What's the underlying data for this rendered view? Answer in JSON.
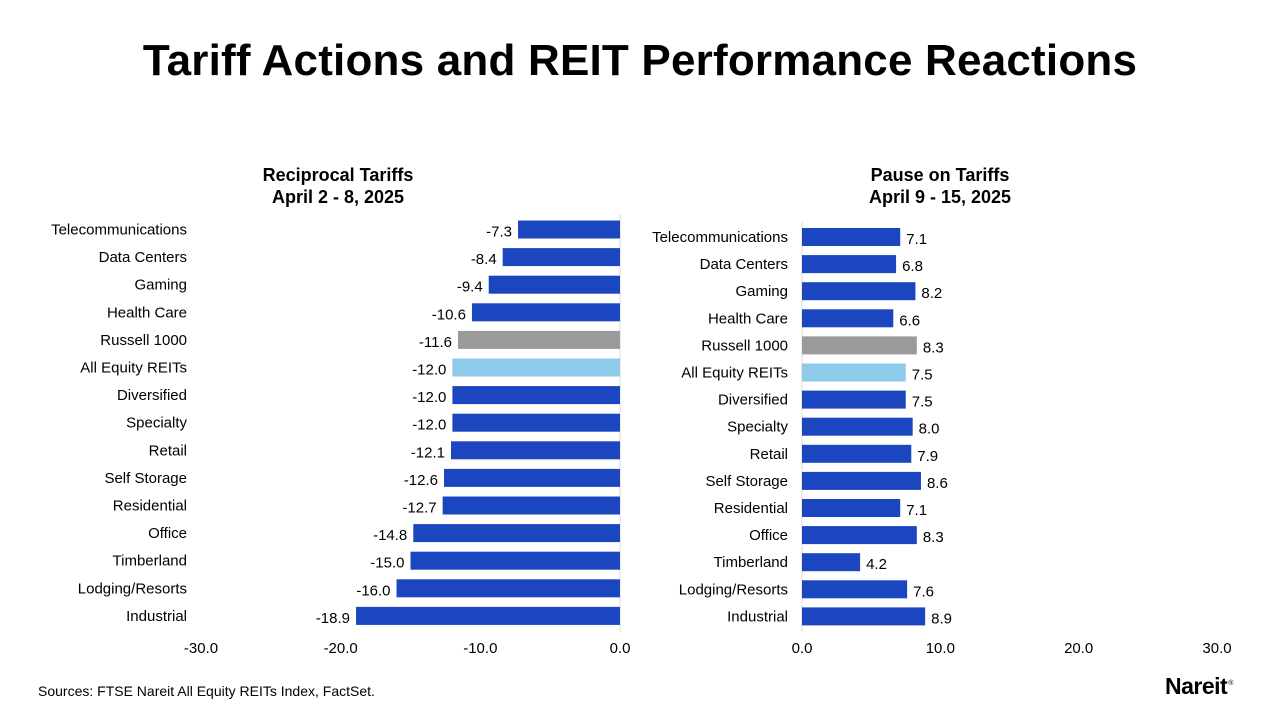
{
  "page": {
    "title": "Tariff Actions and REIT Performance Reactions",
    "source": "Sources: FTSE Nareit All Equity REITs Index, FactSet.",
    "logo": "Nareit",
    "logo_mark": "®"
  },
  "colors": {
    "bar": "#1c45c0",
    "benchmark": "#9a9a9a",
    "all_equity": "#8ecbea"
  },
  "chart_data": [
    {
      "type": "bar",
      "orientation": "horizontal",
      "title": "Reciprocal Tariffs",
      "subtitle": "April 2 - 8, 2025",
      "categories": [
        "Telecommunications",
        "Data Centers",
        "Gaming",
        "Health Care",
        "Russell 1000",
        "All Equity REITs",
        "Diversified",
        "Specialty",
        "Retail",
        "Self Storage",
        "Residential",
        "Office",
        "Timberland",
        "Lodging/Resorts",
        "Industrial"
      ],
      "values": [
        -7.3,
        -8.4,
        -9.4,
        -10.6,
        -11.6,
        -12.0,
        -12.0,
        -12.0,
        -12.1,
        -12.6,
        -12.7,
        -14.8,
        -15.0,
        -16.0,
        -18.9
      ],
      "xlim": [
        -30,
        0
      ],
      "ticks": [
        "-30.0",
        "-20.0",
        "-10.0",
        "0.0"
      ],
      "grid": false
    },
    {
      "type": "bar",
      "orientation": "horizontal",
      "title": "Pause on Tariffs",
      "subtitle": "April 9 - 15, 2025",
      "categories": [
        "Telecommunications",
        "Data Centers",
        "Gaming",
        "Health Care",
        "Russell 1000",
        "All Equity REITs",
        "Diversified",
        "Specialty",
        "Retail",
        "Self Storage",
        "Residential",
        "Office",
        "Timberland",
        "Lodging/Resorts",
        "Industrial"
      ],
      "values": [
        7.1,
        6.8,
        8.2,
        6.6,
        8.3,
        7.5,
        7.5,
        8.0,
        7.9,
        8.6,
        7.1,
        8.3,
        4.2,
        7.6,
        8.9
      ],
      "xlim": [
        0,
        30
      ],
      "ticks": [
        "0.0",
        "10.0",
        "20.0",
        "30.0"
      ],
      "grid": false
    }
  ]
}
